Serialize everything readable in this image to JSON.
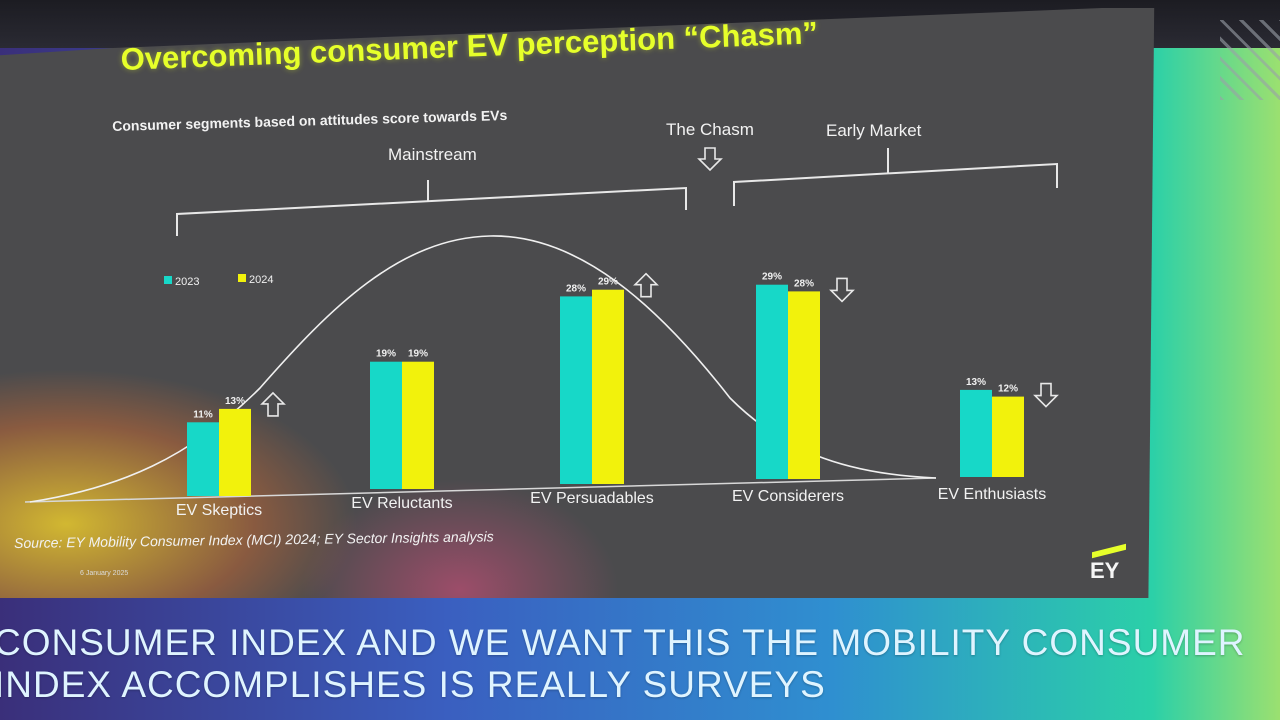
{
  "slide": {
    "title": "Overcoming consumer EV perception “Chasm”",
    "subtitle": "Consumer segments based on attitudes score towards EVs",
    "groups": {
      "mainstream": "Mainstream",
      "chasm": "The Chasm",
      "early_market": "Early Market"
    },
    "source": "Source: EY Mobility Consumer Index (MCI) 2024; EY Sector Insights analysis",
    "date": "6 January 2025",
    "logo_text": "EY"
  },
  "colors": {
    "series_2023": "#17d8c8",
    "series_2024": "#f2f20c",
    "title": "#e6ff2a",
    "slide_bg": "#4b4b4d"
  },
  "chart_data": {
    "type": "bar",
    "categories": [
      "EV Skeptics",
      "EV Reluctants",
      "EV Persuadables",
      "EV Considerers",
      "EV Enthusiasts"
    ],
    "series": [
      {
        "name": "2023",
        "values": [
          11,
          19,
          28,
          29,
          13
        ]
      },
      {
        "name": "2024",
        "values": [
          13,
          19,
          29,
          28,
          12
        ]
      }
    ],
    "value_labels": [
      [
        "11%",
        "13%"
      ],
      [
        "19%",
        "19%"
      ],
      [
        "28%",
        "29%"
      ],
      [
        "29%",
        "28%"
      ],
      [
        "13%",
        "12%"
      ]
    ],
    "trend_arrows": [
      "up-arrow",
      "none",
      "up-arrow",
      "down-arrow",
      "down-arrow"
    ],
    "legend": {
      "placement": "top-left"
    },
    "title": "Overcoming consumer EV perception “Chasm”",
    "xlabel": "",
    "ylabel": "",
    "grid": false
  },
  "caption": {
    "line1": "CONSUMER INDEX AND WE WANT THIS THE MOBILITY CONSUMER",
    "line2": "INDEX ACCOMPLISHES IS REALLY SURVEYS"
  }
}
